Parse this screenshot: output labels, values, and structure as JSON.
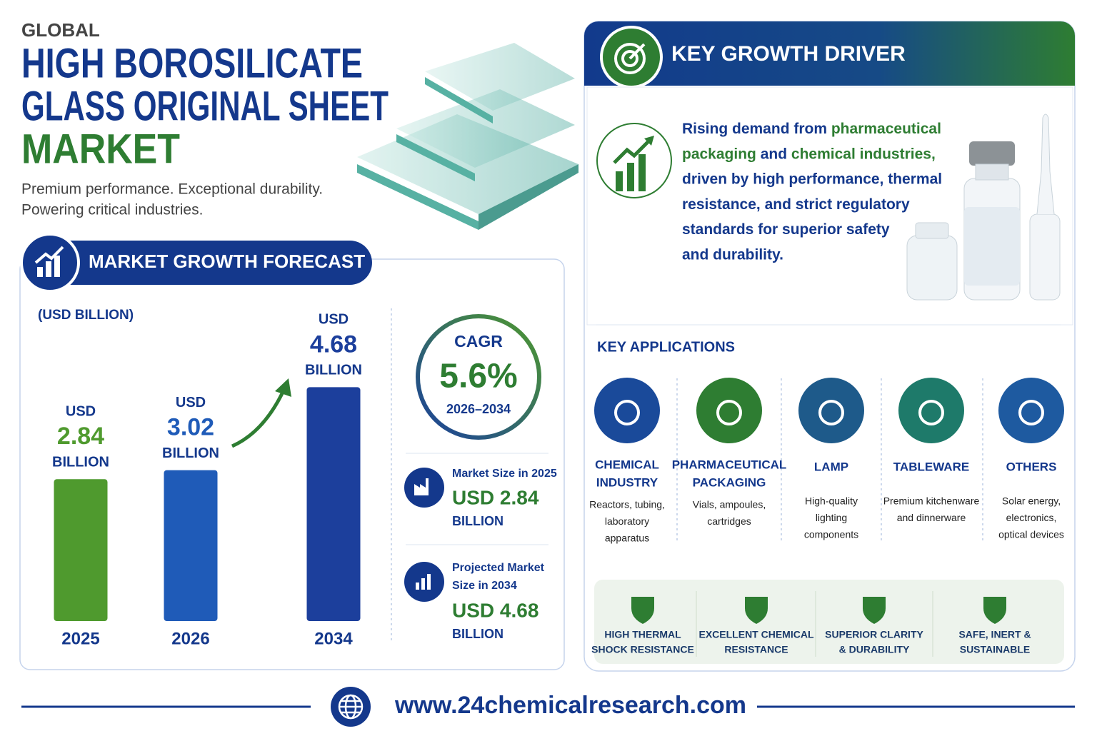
{
  "header": {
    "eyebrow": "GLOBAL",
    "title_line1": "HIGH BOROSILICATE",
    "title_line2": "GLASS ORIGINAL SHEET",
    "title_line3": "MARKET",
    "tagline_line1": "Premium performance. Exceptional durability.",
    "tagline_line2": "Powering critical industries."
  },
  "forecast": {
    "title": "MARKET GROWTH FORECAST",
    "unit": "(USD BILLION)",
    "cagr_label": "CAGR",
    "cagr_value": "5.6%",
    "cagr_period": "2026–2034",
    "stats": [
      {
        "label": [
          "Market Size in 2025"
        ],
        "value": "USD 2.84",
        "unit": "BILLION"
      },
      {
        "label": [
          "Projected Market",
          "Size in 2034"
        ],
        "value": "USD 4.68",
        "unit": "BILLION"
      }
    ]
  },
  "chart_data": {
    "type": "bar",
    "categories": [
      "2025",
      "2026",
      "2034"
    ],
    "values": [
      2.84,
      3.02,
      4.68
    ],
    "value_prefix": "USD",
    "value_suffix": "BILLION",
    "colors": [
      "#4f9a2e",
      "#1f5bb8",
      "#1c3f9c"
    ],
    "ylim": [
      0,
      5
    ]
  },
  "driver": {
    "title": "KEY GROWTH DRIVER",
    "lines": [
      [
        {
          "text": "Rising demand from "
        },
        {
          "text": "pharmaceutical",
          "highlight": true
        }
      ],
      [
        {
          "text": "packaging",
          "highlight": true
        },
        {
          "text": " and "
        },
        {
          "text": "chemical industries,",
          "highlight": true
        }
      ],
      [
        {
          "text": "driven by high performance, thermal"
        }
      ],
      [
        {
          "text": "resistance, and strict regulatory"
        }
      ],
      [
        {
          "text": "standards for superior safety"
        }
      ],
      [
        {
          "text": "and durability."
        }
      ]
    ]
  },
  "applications": {
    "title": "KEY APPLICATIONS",
    "items": [
      {
        "name": [
          "CHEMICAL",
          "INDUSTRY"
        ],
        "desc": [
          "Reactors, tubing,",
          "laboratory",
          "apparatus"
        ]
      },
      {
        "name": [
          "PHARMACEUTICAL",
          "PACKAGING"
        ],
        "desc": [
          "Vials, ampoules,",
          "cartridges"
        ]
      },
      {
        "name": [
          "LAMP"
        ],
        "desc": [
          "High-quality",
          "lighting",
          "components"
        ]
      },
      {
        "name": [
          "TABLEWARE"
        ],
        "desc": [
          "Premium kitchenware",
          "and dinnerware"
        ]
      },
      {
        "name": [
          "OTHERS"
        ],
        "desc": [
          "Solar energy,",
          "electronics,",
          "optical devices"
        ]
      }
    ]
  },
  "features": [
    {
      "lines": [
        "HIGH THERMAL",
        "SHOCK RESISTANCE"
      ]
    },
    {
      "lines": [
        "EXCELLENT CHEMICAL",
        "RESISTANCE"
      ]
    },
    {
      "lines": [
        "SUPERIOR CLARITY",
        "& DURABILITY"
      ]
    },
    {
      "lines": [
        "SAFE, INERT &",
        "SUSTAINABLE"
      ]
    }
  ],
  "footer": {
    "url": "www.24chemicalresearch.com"
  }
}
